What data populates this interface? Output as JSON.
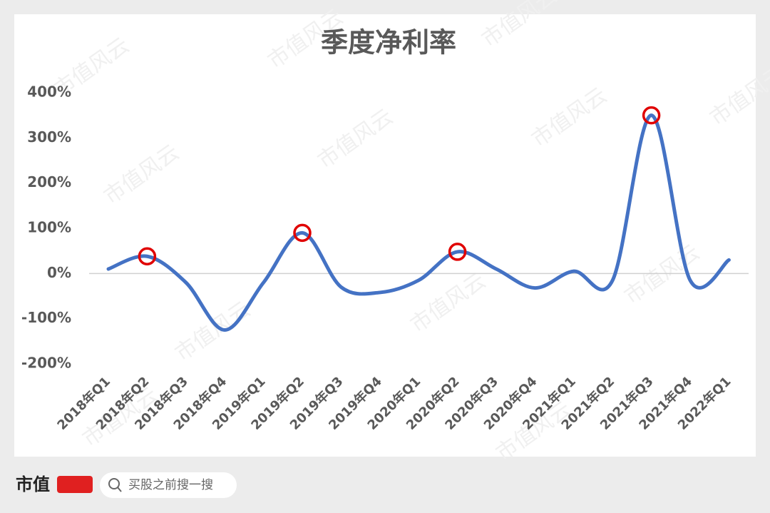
{
  "chart_data": {
    "type": "line",
    "title": "季度净利率",
    "categories": [
      "2018年Q1",
      "2018年Q2",
      "2018年Q3",
      "2018年Q4",
      "2019年Q1",
      "2019年Q2",
      "2019年Q3",
      "2019年Q4",
      "2020年Q1",
      "2020年Q2",
      "2020年Q3",
      "2020年Q4",
      "2021年Q1",
      "2021年Q2",
      "2021年Q3",
      "2021年Q4",
      "2022年Q1"
    ],
    "series": [
      {
        "name": "净利率",
        "color": "#4472c4",
        "values": [
          10,
          38,
          -20,
          -125,
          -20,
          90,
          -30,
          -42,
          -15,
          48,
          10,
          -32,
          5,
          -15,
          350,
          -15,
          30
        ]
      }
    ],
    "highlight": [
      1,
      5,
      9,
      14
    ],
    "highlight_color": "#e00000",
    "ylim": [
      -200,
      400
    ],
    "yticks": [
      {
        "value": -200,
        "label": "-200%"
      },
      {
        "value": -100,
        "label": "-100%"
      },
      {
        "value": 0,
        "label": "0%"
      },
      {
        "value": 100,
        "label": "100%"
      },
      {
        "value": 200,
        "label": "200%"
      },
      {
        "value": 300,
        "label": "300%"
      },
      {
        "value": 400,
        "label": "400%"
      }
    ],
    "zero_line": true
  },
  "footer": {
    "logo": "市值",
    "search": "买股之前搜一搜"
  },
  "watermark": "市值风云"
}
